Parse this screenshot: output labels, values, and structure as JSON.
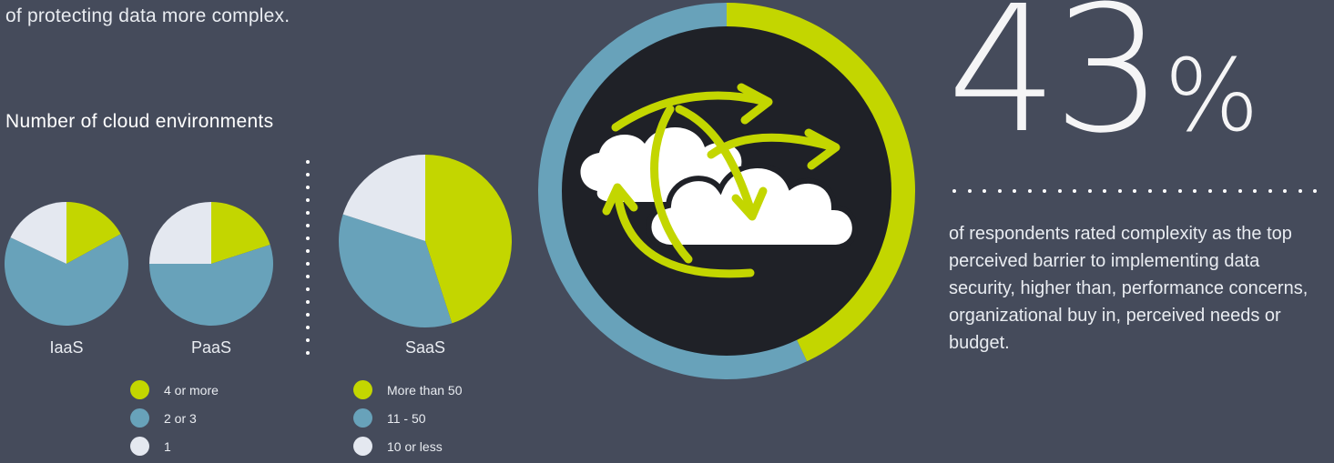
{
  "intro_text": "of protecting data more complex.",
  "section_title": "Number of cloud environments",
  "colors": {
    "background": "#454b5b",
    "green": "#c3d600",
    "blue": "#68a2ba",
    "light": "#e4e8f0",
    "ring_inner": "#1f2127"
  },
  "chart_data": [
    {
      "type": "pie",
      "title": "IaaS",
      "categories": [
        "4 or more",
        "2 or 3",
        "1"
      ],
      "values": [
        17,
        65,
        18
      ]
    },
    {
      "type": "pie",
      "title": "PaaS",
      "categories": [
        "4 or more",
        "2 or 3",
        "1"
      ],
      "values": [
        20,
        55,
        25
      ]
    },
    {
      "type": "pie",
      "title": "SaaS",
      "categories": [
        "More than 50",
        "11 - 50",
        "10 or less"
      ],
      "values": [
        45,
        35,
        20
      ]
    },
    {
      "type": "pie",
      "title": "",
      "categories": [
        "",
        ""
      ],
      "values": [
        43,
        57
      ]
    }
  ],
  "legend_left": {
    "items": [
      {
        "label": "4 or more",
        "color": "#c3d600"
      },
      {
        "label": "2 or 3",
        "color": "#68a2ba"
      },
      {
        "label": "1",
        "color": "#e4e8f0"
      }
    ]
  },
  "legend_right": {
    "items": [
      {
        "label": "More than 50",
        "color": "#c3d600"
      },
      {
        "label": "11 - 50",
        "color": "#68a2ba"
      },
      {
        "label": "10 or less",
        "color": "#e4e8f0"
      }
    ]
  },
  "ring_icon": "cloud-with-arrows-icon",
  "stat": {
    "number": "43",
    "percent_sign": "%",
    "text": "of respondents rated complexity as the top perceived barrier to implementing data security, higher than, performance concerns, organizational buy in, perceived needs or budget."
  }
}
